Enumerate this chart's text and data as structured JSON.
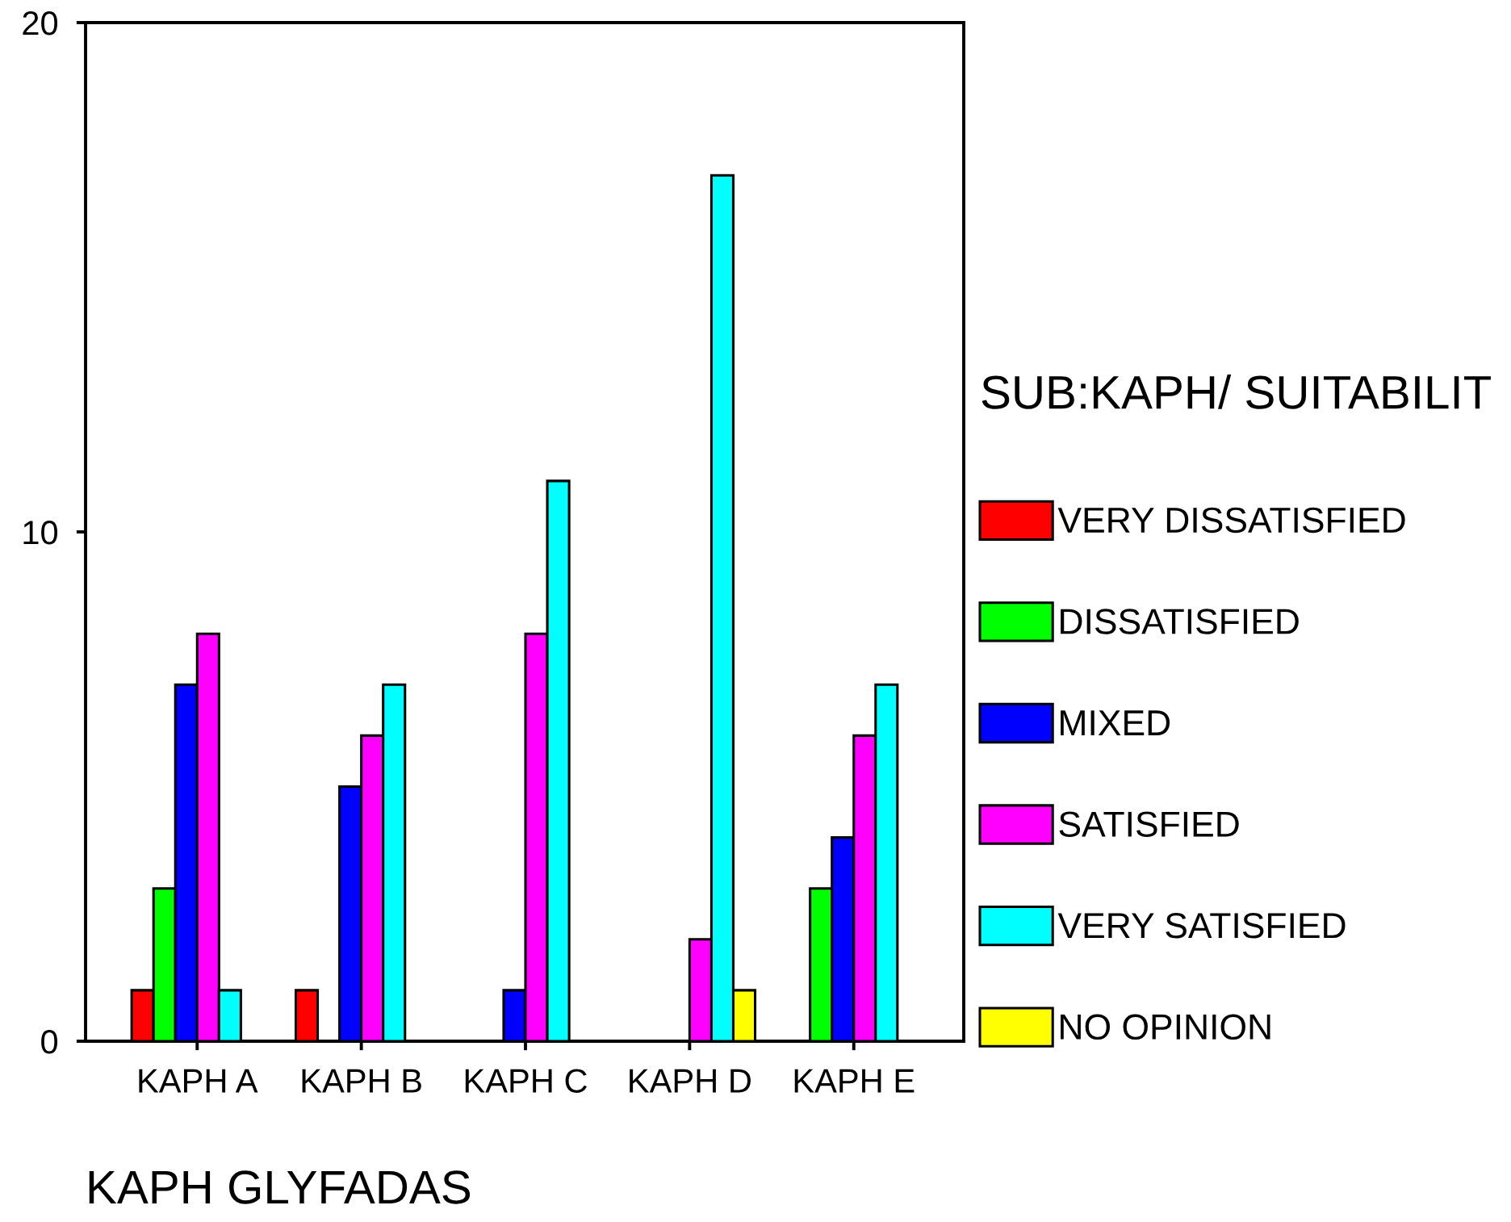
{
  "chart_data": {
    "type": "bar",
    "xlabel": "KAPH GLYFADAS",
    "legend_title": "SUB:KAPH/ SUITABILIT",
    "categories": [
      "KAPH A",
      "KAPH B",
      "KAPH C",
      "KAPH D",
      "KAPH E"
    ],
    "series": [
      {
        "name": "VERY DISSATISFIED",
        "color": "#ff0000",
        "values": [
          1,
          1,
          null,
          null,
          null
        ]
      },
      {
        "name": "DISSATISFIED",
        "color": "#00ff00",
        "values": [
          3,
          null,
          null,
          null,
          3
        ]
      },
      {
        "name": "MIXED",
        "color": "#0000ff",
        "values": [
          7,
          5,
          1,
          null,
          4
        ]
      },
      {
        "name": "SATISFIED",
        "color": "#ff00ff",
        "values": [
          8,
          6,
          8,
          2,
          6
        ]
      },
      {
        "name": "VERY SATISFIED",
        "color": "#00ffff",
        "values": [
          1,
          7,
          11,
          17,
          7
        ]
      },
      {
        "name": "NO OPINION",
        "color": "#ffff00",
        "values": [
          null,
          null,
          null,
          1,
          null
        ]
      }
    ],
    "ylim": [
      0,
      20
    ],
    "yticks": [
      0,
      10,
      20
    ],
    "legend": "right"
  }
}
